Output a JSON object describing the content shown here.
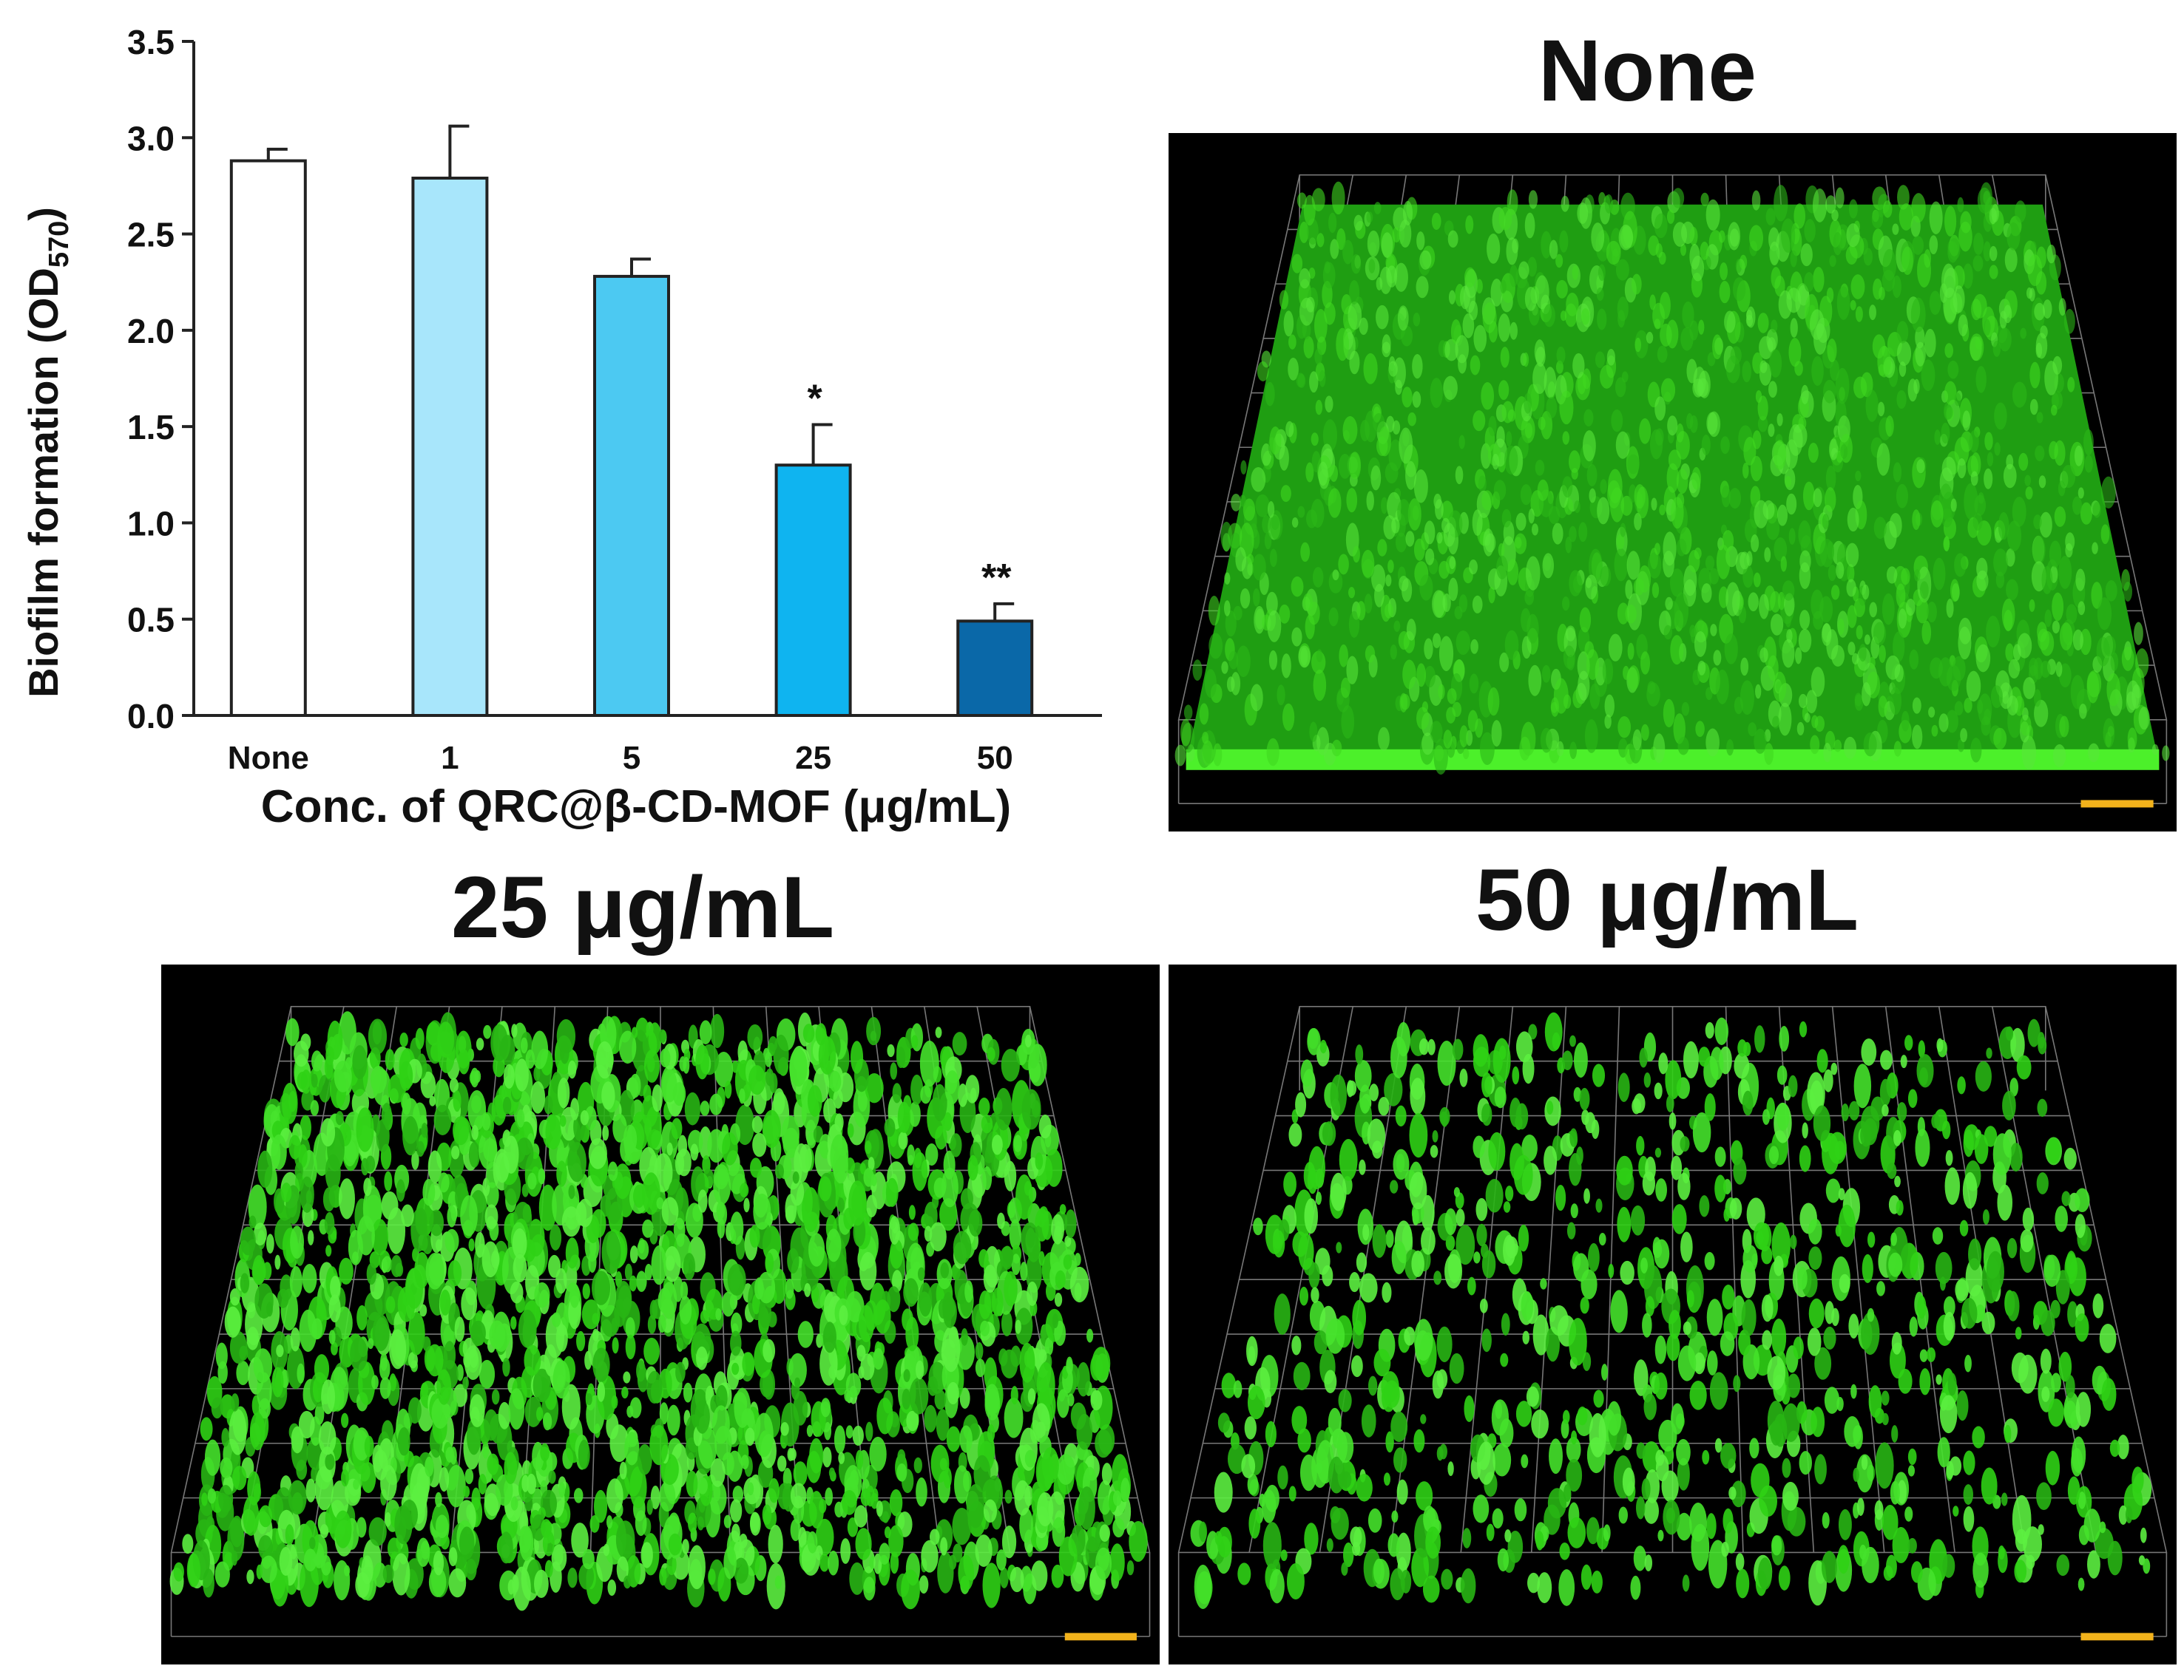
{
  "chart_data": {
    "type": "bar",
    "categories": [
      "None",
      "1",
      "5",
      "25",
      "50"
    ],
    "values": [
      2.88,
      2.79,
      2.28,
      1.3,
      0.49
    ],
    "errors": [
      0.06,
      0.27,
      0.09,
      0.21,
      0.09
    ],
    "significance": [
      "",
      "",
      "",
      "*",
      "**"
    ],
    "colors": [
      "#ffffff",
      "#a8e6fb",
      "#4cc9f2",
      "#0fb4f0",
      "#0a68a8"
    ],
    "ylabel_main": "Biofilm formation (OD",
    "ylabel_sub": "570",
    "ylabel_end": ")",
    "xlabel": "Conc. of QRC@β-CD-MOF (μg/mL)",
    "ylim": [
      0.0,
      3.5
    ],
    "yticks": [
      "0.0",
      "0.5",
      "1.0",
      "1.5",
      "2.0",
      "2.5",
      "3.0",
      "3.5"
    ],
    "grid": false
  },
  "panels": {
    "none_title": "None",
    "p25_title": "25  μg/mL",
    "p50_title": "50 μg/mL"
  },
  "colors": {
    "fluorescence": "#3ddc1e",
    "scale_bar": "#f2b21b",
    "background": "#000000"
  }
}
